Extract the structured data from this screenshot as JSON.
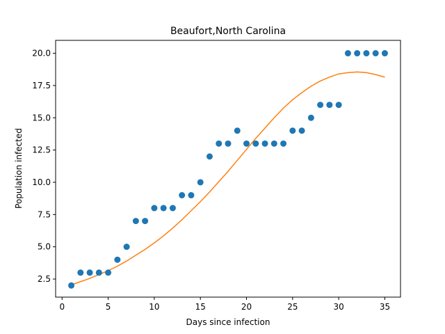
{
  "chart_data": {
    "type": "scatter",
    "title": "Beaufort,North Carolina",
    "xlabel": "Days since infection",
    "ylabel": "Population infected",
    "xlim": [
      -0.7,
      36.7
    ],
    "ylim": [
      1.1,
      21.0
    ],
    "xticks": [
      0,
      5,
      10,
      15,
      20,
      25,
      30,
      35
    ],
    "yticks": [
      2.5,
      5.0,
      7.5,
      10.0,
      12.5,
      15.0,
      17.5,
      20.0
    ],
    "grid": false,
    "series": [
      {
        "kind": "scatter",
        "color": "#1f77b4",
        "x": [
          1,
          2,
          3,
          4,
          5,
          6,
          7,
          8,
          9,
          10,
          11,
          12,
          13,
          14,
          15,
          16,
          17,
          18,
          19,
          20,
          21,
          22,
          23,
          24,
          25,
          26,
          27,
          28,
          29,
          30,
          31,
          32,
          33,
          34,
          35
        ],
        "y": [
          2,
          3,
          3,
          3,
          3,
          4,
          5,
          7,
          7,
          8,
          8,
          8,
          9,
          9,
          10,
          12,
          13,
          13,
          14,
          13,
          13,
          13,
          13,
          13,
          14,
          14,
          15,
          16,
          16,
          16,
          20,
          20,
          20,
          20,
          20
        ]
      },
      {
        "kind": "line",
        "color": "#ff7f0e",
        "x": [
          1,
          2,
          3,
          4,
          5,
          6,
          7,
          8,
          9,
          10,
          11,
          12,
          13,
          14,
          15,
          16,
          17,
          18,
          19,
          20,
          21,
          22,
          23,
          24,
          25,
          26,
          27,
          28,
          29,
          30,
          31,
          32,
          33,
          34,
          35
        ],
        "y": [
          2.05,
          2.3,
          2.55,
          2.85,
          3.15,
          3.5,
          3.9,
          4.35,
          4.8,
          5.3,
          5.85,
          6.45,
          7.1,
          7.8,
          8.5,
          9.25,
          10.05,
          10.85,
          11.7,
          12.55,
          13.4,
          14.2,
          15.0,
          15.75,
          16.4,
          16.95,
          17.45,
          17.85,
          18.15,
          18.4,
          18.5,
          18.55,
          18.5,
          18.35,
          18.15
        ]
      }
    ]
  }
}
